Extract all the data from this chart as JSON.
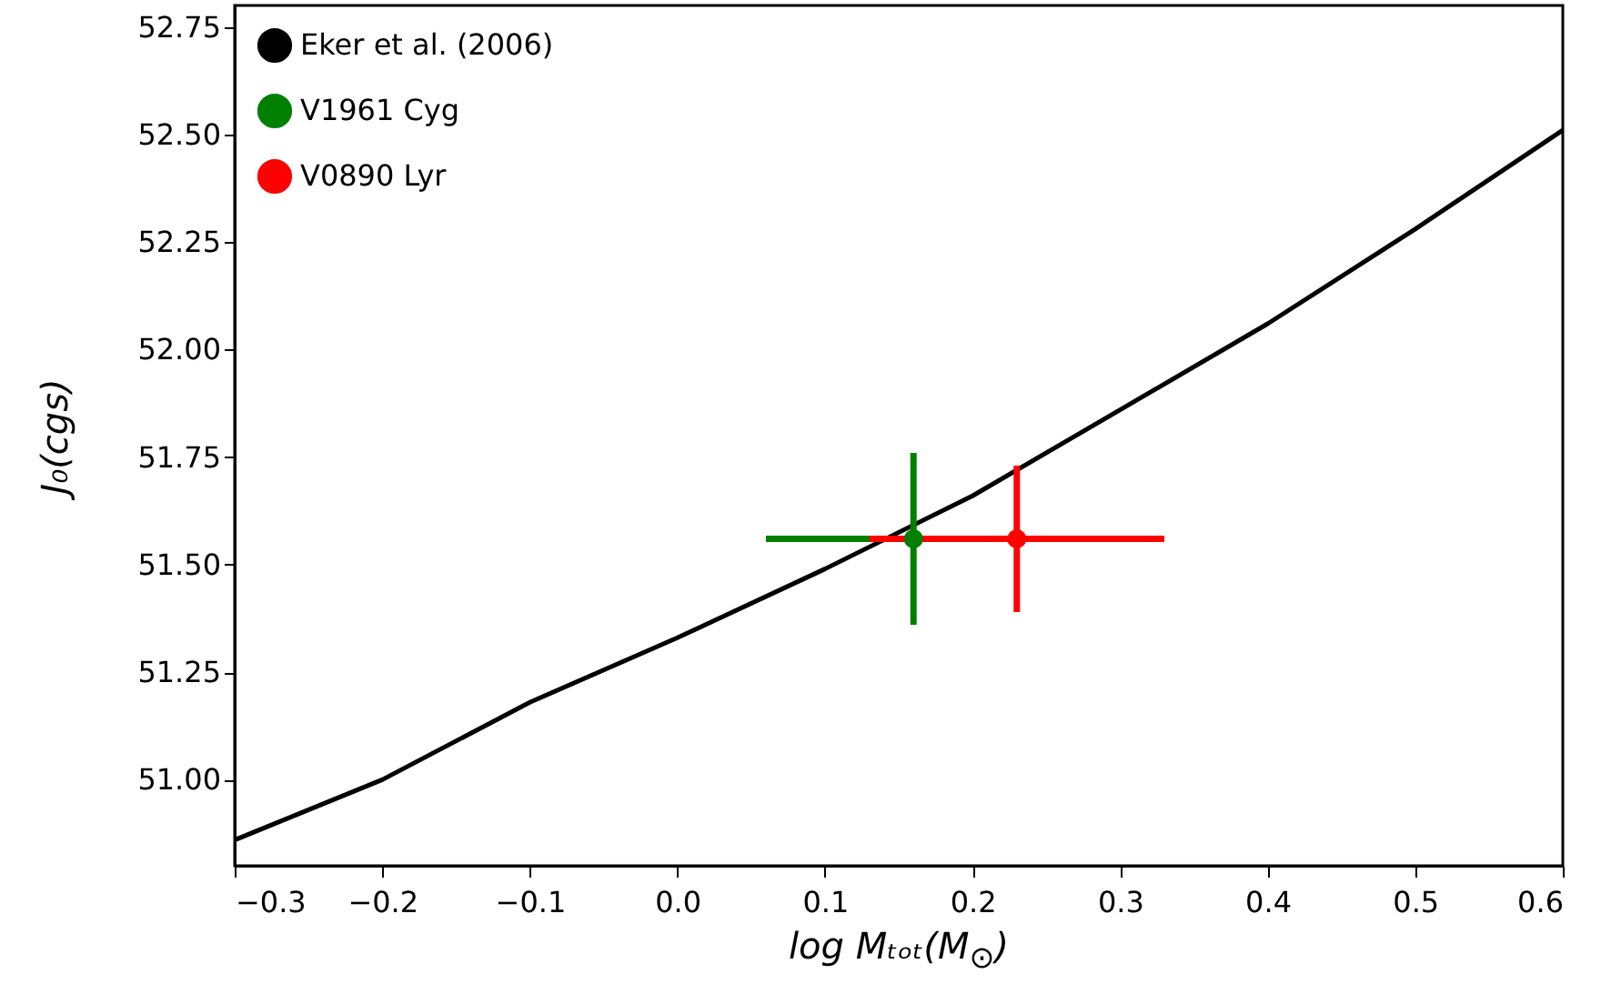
{
  "chart_data": {
    "type": "line",
    "xlabel": "log Mₜₒₜ(M$_{⊙}$)",
    "ylabel": "J₀(cgs)",
    "xlim": [
      -0.3,
      0.6
    ],
    "ylim": [
      50.8,
      52.8
    ],
    "xticks": [
      -0.3,
      -0.2,
      -0.1,
      {
        "value": 0,
        "label": "0.0"
      },
      0.1,
      0.2,
      0.3,
      0.4,
      0.5,
      0.6
    ],
    "yticks": [
      {
        "value": 51,
        "label": "51.00"
      },
      51.25,
      {
        "value": 51.5,
        "label": "51.50"
      },
      51.75,
      {
        "value": 52,
        "label": "52.00"
      },
      52.25,
      {
        "value": 52.5,
        "label": "52.50"
      },
      52.75
    ],
    "grid": false,
    "legend": "top left",
    "marker": "none",
    "line_style": "solid",
    "series": [
      {
        "name": "Eker et al. (2006)",
        "color": "#000000",
        "x": [
          -0.3,
          -0.2,
          -0.1,
          0.0,
          0.1,
          0.2,
          0.3,
          0.4,
          0.5,
          0.6
        ],
        "values": [
          50.86,
          51.0,
          51.18,
          51.33,
          51.49,
          51.66,
          51.86,
          52.06,
          52.28,
          52.51
        ]
      },
      {
        "name": "V1961 Cyg",
        "type": "scatter",
        "marker": "circle",
        "color": "#008000",
        "x": [
          0.16
        ],
        "values": [
          51.56
        ],
        "errors": [
          0.2
        ],
        "xerrors": [
          0.1
        ]
      },
      {
        "name": "V0890 Lyr",
        "type": "scatter",
        "marker": "circle",
        "color": "#ff0000",
        "x": [
          0.23
        ],
        "values": [
          51.56
        ],
        "errors": [
          0.17
        ],
        "xerrors": [
          0.1
        ]
      }
    ]
  }
}
